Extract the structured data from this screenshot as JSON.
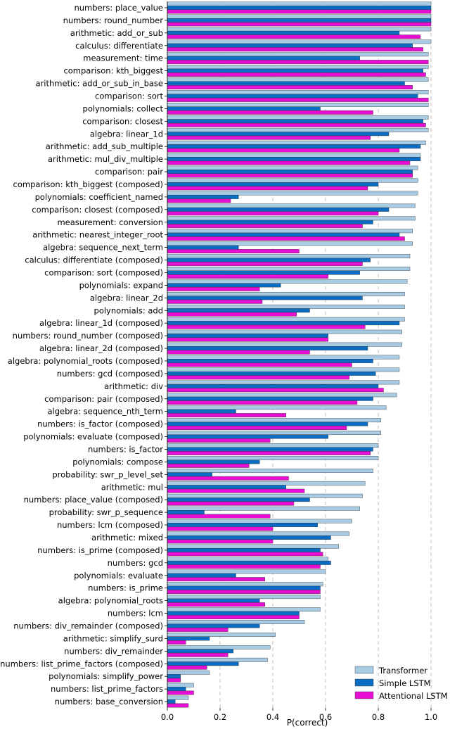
{
  "chart_data": {
    "type": "bar",
    "orientation": "horizontal",
    "title": "",
    "xlabel": "P(correct)",
    "ylabel": "",
    "xlim": [
      0,
      1.0
    ],
    "xticks": [
      "0.0",
      "0.2",
      "0.4",
      "0.6",
      "0.8",
      "1.0"
    ],
    "grid": "x-dashed",
    "legend_position": "bottom-right",
    "colors": {
      "Transformer": "#a6cbe3",
      "Simple LSTM": "#0a6cc2",
      "Attentional LSTM": "#e60ed2"
    },
    "categories": [
      "numbers: place_value",
      "numbers: round_number",
      "arithmetic: add_or_sub",
      "calculus: differentiate",
      "measurement: time",
      "comparison: kth_biggest",
      "arithmetic: add_or_sub_in_base",
      "comparison: sort",
      "polynomials: collect",
      "comparison: closest",
      "algebra: linear_1d",
      "arithmetic: add_sub_multiple",
      "arithmetic: mul_div_multiple",
      "comparison: pair",
      "comparison: kth_biggest (composed)",
      "polynomials: coefficient_named",
      "comparison: closest (composed)",
      "measurement: conversion",
      "arithmetic: nearest_integer_root",
      "algebra: sequence_next_term",
      "calculus: differentiate (composed)",
      "comparison: sort (composed)",
      "polynomials: expand",
      "algebra: linear_2d",
      "polynomials: add",
      "algebra: linear_1d (composed)",
      "numbers: round_number (composed)",
      "algebra: linear_2d (composed)",
      "algebra: polynomial_roots (composed)",
      "numbers: gcd (composed)",
      "arithmetic: div",
      "comparison: pair (composed)",
      "algebra: sequence_nth_term",
      "numbers: is_factor (composed)",
      "polynomials: evaluate (composed)",
      "numbers: is_factor",
      "polynomials: compose",
      "probability: swr_p_level_set",
      "arithmetic: mul",
      "numbers: place_value (composed)",
      "probability: swr_p_sequence",
      "numbers: lcm (composed)",
      "arithmetic: mixed",
      "numbers: is_prime (composed)",
      "numbers: gcd",
      "polynomials: evaluate",
      "numbers: is_prime",
      "algebra: polynomial_roots",
      "numbers: lcm",
      "numbers: div_remainder (composed)",
      "arithmetic: simplify_surd",
      "numbers: div_remainder",
      "numbers: list_prime_factors (composed)",
      "polynomials: simplify_power",
      "numbers: list_prime_factors",
      "numbers: base_conversion"
    ],
    "series": [
      {
        "name": "Transformer",
        "values": [
          1.0,
          1.0,
          1.0,
          1.0,
          0.99,
          0.99,
          0.99,
          0.99,
          0.99,
          0.99,
          0.99,
          0.98,
          0.96,
          0.95,
          0.95,
          0.95,
          0.94,
          0.94,
          0.93,
          0.93,
          0.92,
          0.92,
          0.91,
          0.9,
          0.9,
          0.9,
          0.89,
          0.89,
          0.88,
          0.88,
          0.88,
          0.87,
          0.83,
          0.81,
          0.81,
          0.8,
          0.8,
          0.78,
          0.75,
          0.74,
          0.73,
          0.7,
          0.69,
          0.65,
          0.61,
          0.6,
          0.59,
          0.58,
          0.58,
          0.52,
          0.41,
          0.39,
          0.38,
          0.16,
          0.1,
          0.08
        ]
      },
      {
        "name": "Simple LSTM",
        "values": [
          1.0,
          1.0,
          0.88,
          0.93,
          0.73,
          0.97,
          0.9,
          0.95,
          0.58,
          0.97,
          0.84,
          0.96,
          0.96,
          0.93,
          0.8,
          0.27,
          0.84,
          0.78,
          0.88,
          0.27,
          0.77,
          0.73,
          0.43,
          0.74,
          0.54,
          0.88,
          0.61,
          0.76,
          0.78,
          0.79,
          0.8,
          0.78,
          0.26,
          0.76,
          0.61,
          0.78,
          0.35,
          0.17,
          0.45,
          0.54,
          0.14,
          0.57,
          0.62,
          0.58,
          0.62,
          0.26,
          0.58,
          0.35,
          0.5,
          0.35,
          0.16,
          0.25,
          0.27,
          0.05,
          0.07,
          0.03
        ]
      },
      {
        "name": "Attentional LSTM",
        "values": [
          1.0,
          1.0,
          0.96,
          0.97,
          0.99,
          0.98,
          0.93,
          0.99,
          0.78,
          0.98,
          0.77,
          0.88,
          0.92,
          0.93,
          0.76,
          0.24,
          0.8,
          0.74,
          0.9,
          0.5,
          0.74,
          0.61,
          0.35,
          0.36,
          0.49,
          0.75,
          0.61,
          0.54,
          0.7,
          0.69,
          0.82,
          0.72,
          0.45,
          0.68,
          0.39,
          0.77,
          0.31,
          0.46,
          0.52,
          0.48,
          0.39,
          0.4,
          0.4,
          0.59,
          0.58,
          0.37,
          0.58,
          0.37,
          0.5,
          0.23,
          0.07,
          0.23,
          0.15,
          0.05,
          0.1,
          0.08
        ]
      }
    ]
  }
}
